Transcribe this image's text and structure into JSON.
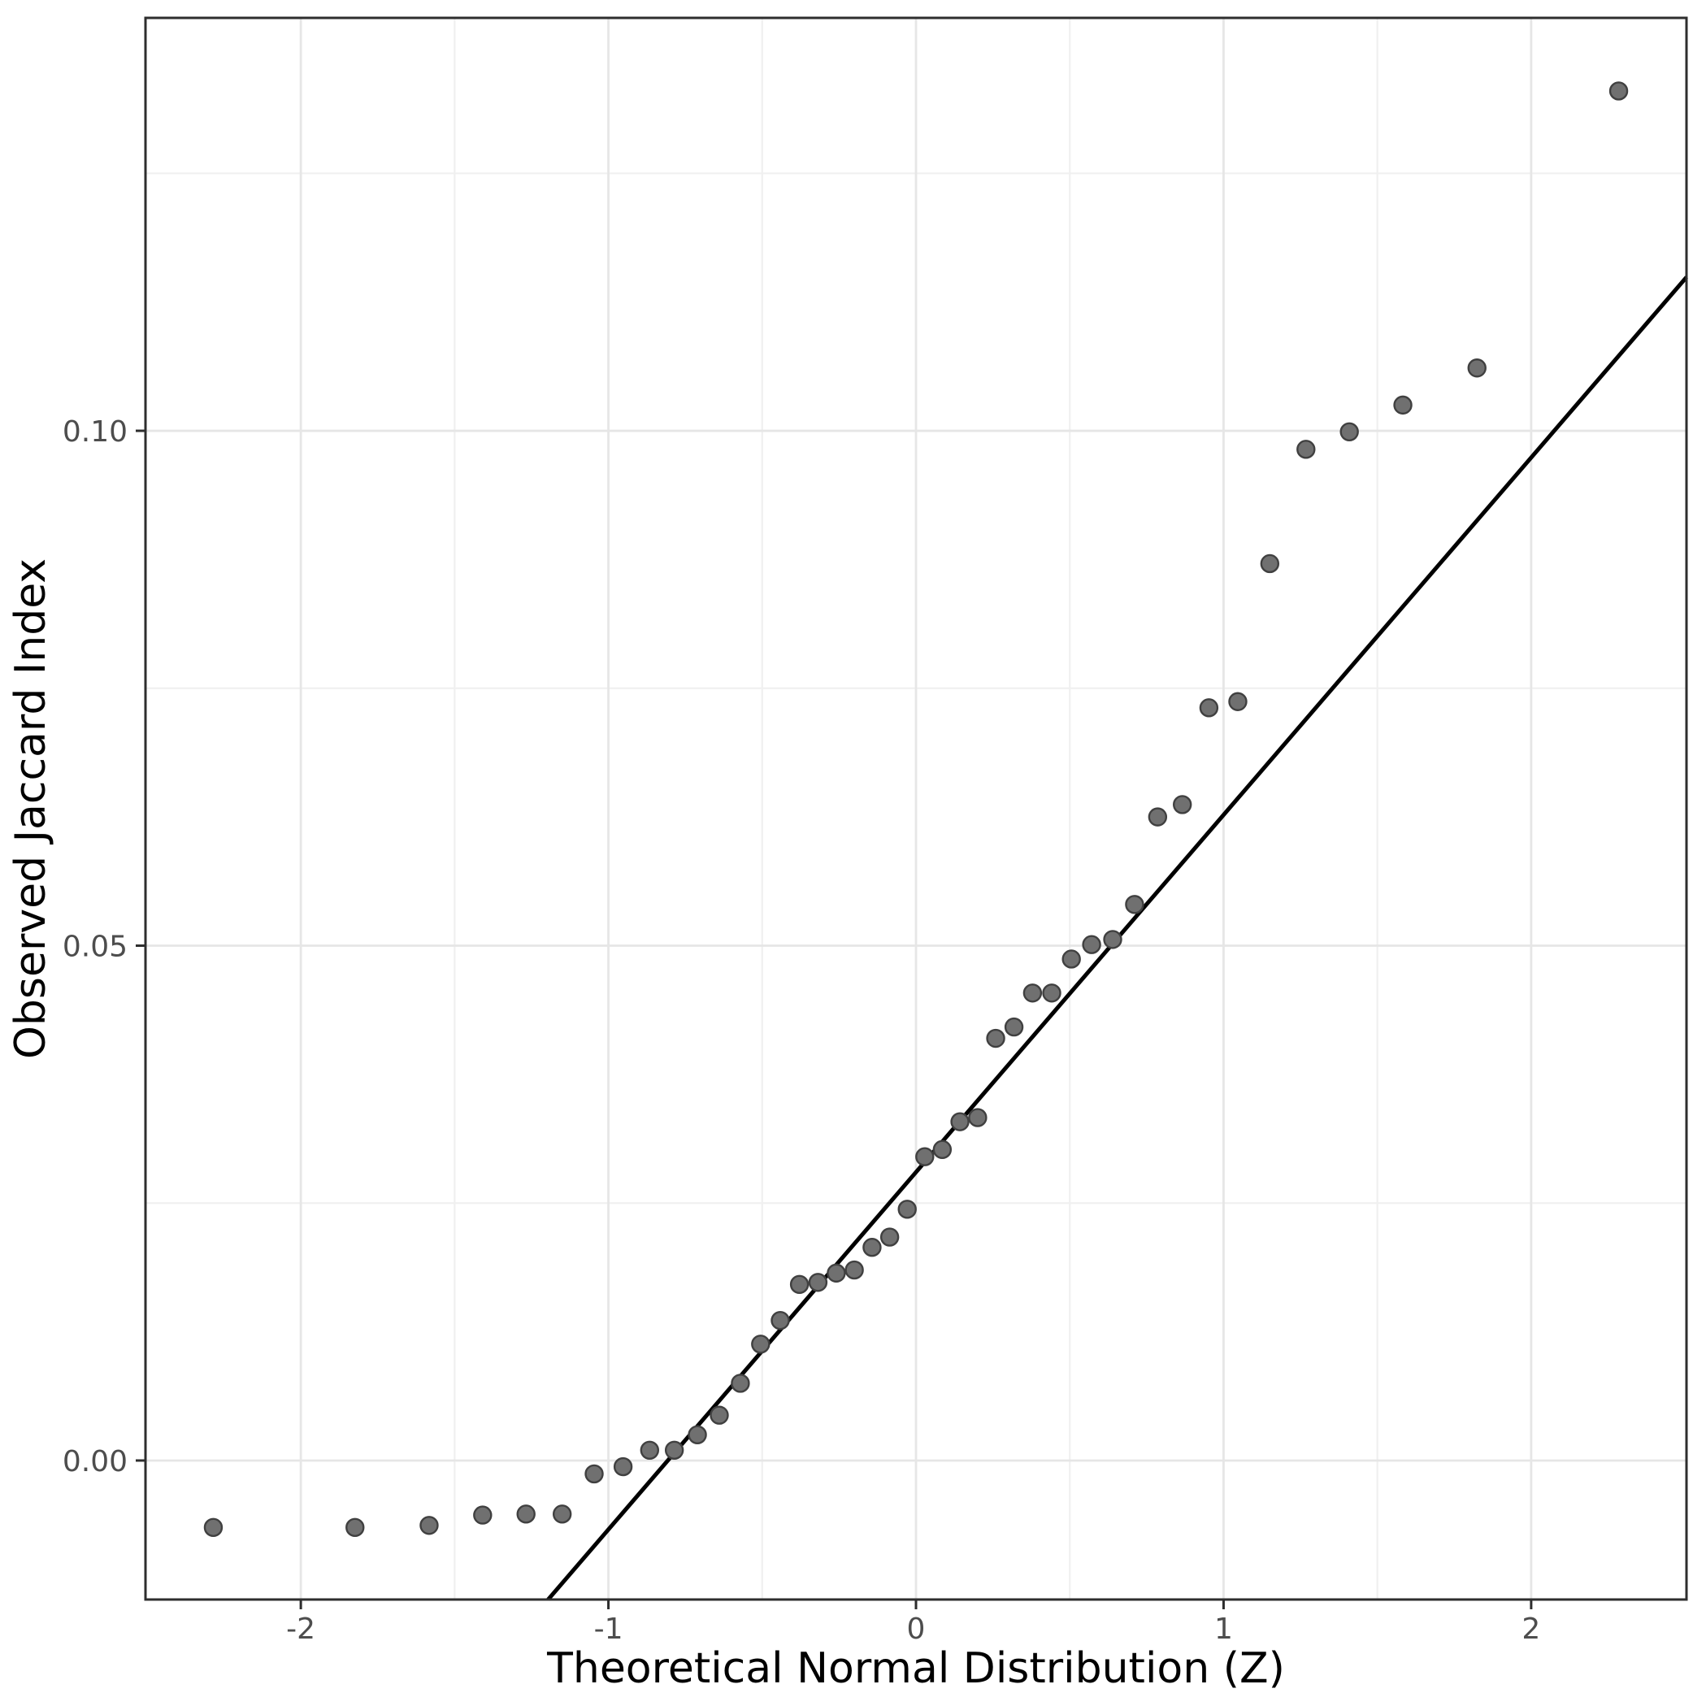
{
  "chart_data": {
    "type": "scatter",
    "title": "",
    "xlabel": "Theoretical Normal Distribution (Z)",
    "ylabel": "Observed Jaccard Index",
    "xlim": [
      -2.505,
      2.505
    ],
    "ylim": [
      -0.0135,
      0.1401
    ],
    "x_ticks": [
      -2,
      -1,
      0,
      1,
      2
    ],
    "x_tick_labels": [
      "-2",
      "-1",
      "0",
      "1",
      "2"
    ],
    "x_minor_ticks": [
      -1.5,
      -0.5,
      0.5,
      1.5
    ],
    "y_ticks": [
      0.0,
      0.05,
      0.1
    ],
    "y_tick_labels": [
      "0.00",
      "0.05",
      "0.10"
    ],
    "y_minor_ticks": [
      0.025,
      0.075,
      0.125
    ],
    "grid": true,
    "legend": "none",
    "points": [
      [
        -2.2845,
        -0.0065
      ],
      [
        -1.8239,
        -0.0065
      ],
      [
        -1.5829,
        -0.0063
      ],
      [
        -1.4089,
        -0.0053
      ],
      [
        -1.2678,
        -0.0052
      ],
      [
        -1.1503,
        -0.0052
      ],
      [
        -1.0463,
        -0.0013
      ],
      [
        -0.9523,
        -0.0006
      ],
      [
        -0.8659,
        0.001
      ],
      [
        -0.7857,
        0.001
      ],
      [
        -0.7106,
        0.0025
      ],
      [
        -0.6395,
        0.0044
      ],
      [
        -0.571,
        0.0075
      ],
      [
        -0.5052,
        0.0113
      ],
      [
        -0.4413,
        0.0136
      ],
      [
        -0.3789,
        0.0171
      ],
      [
        -0.3186,
        0.0173
      ],
      [
        -0.2591,
        0.0182
      ],
      [
        -0.2005,
        0.0185
      ],
      [
        -0.1429,
        0.0207
      ],
      [
        -0.0855,
        0.0217
      ],
      [
        -0.0285,
        0.0244
      ],
      [
        0.0285,
        0.0295
      ],
      [
        0.0855,
        0.0302
      ],
      [
        0.1429,
        0.0329
      ],
      [
        0.2005,
        0.0333
      ],
      [
        0.2591,
        0.041
      ],
      [
        0.3186,
        0.0421
      ],
      [
        0.3789,
        0.0454
      ],
      [
        0.4413,
        0.0454
      ],
      [
        0.5052,
        0.0487
      ],
      [
        0.571,
        0.0501
      ],
      [
        0.6395,
        0.0506
      ],
      [
        0.7106,
        0.054
      ],
      [
        0.7857,
        0.0625
      ],
      [
        0.8659,
        0.0637
      ],
      [
        0.9523,
        0.0731
      ],
      [
        1.0463,
        0.0737
      ],
      [
        1.1503,
        0.0871
      ],
      [
        1.2678,
        0.0982
      ],
      [
        1.4089,
        0.0999
      ],
      [
        1.5829,
        0.1025
      ],
      [
        1.8239,
        0.1061
      ],
      [
        2.2845,
        0.133
      ]
    ],
    "ref_line": {
      "slope": 0.0347,
      "intercept": 0.028
    },
    "colors": {
      "background": "#ffffff",
      "panel_background": "#ffffff",
      "grid_major": "#e6e6e6",
      "grid_minor": "#f0f0f0",
      "panel_border": "#2e2e2e",
      "tick_mark": "#2e2e2e",
      "tick_text": "#4d4d4d",
      "axis_title_text": "#000000",
      "point_fill": "#707070",
      "point_stroke": "#404040",
      "ref_line": "#000000"
    }
  }
}
